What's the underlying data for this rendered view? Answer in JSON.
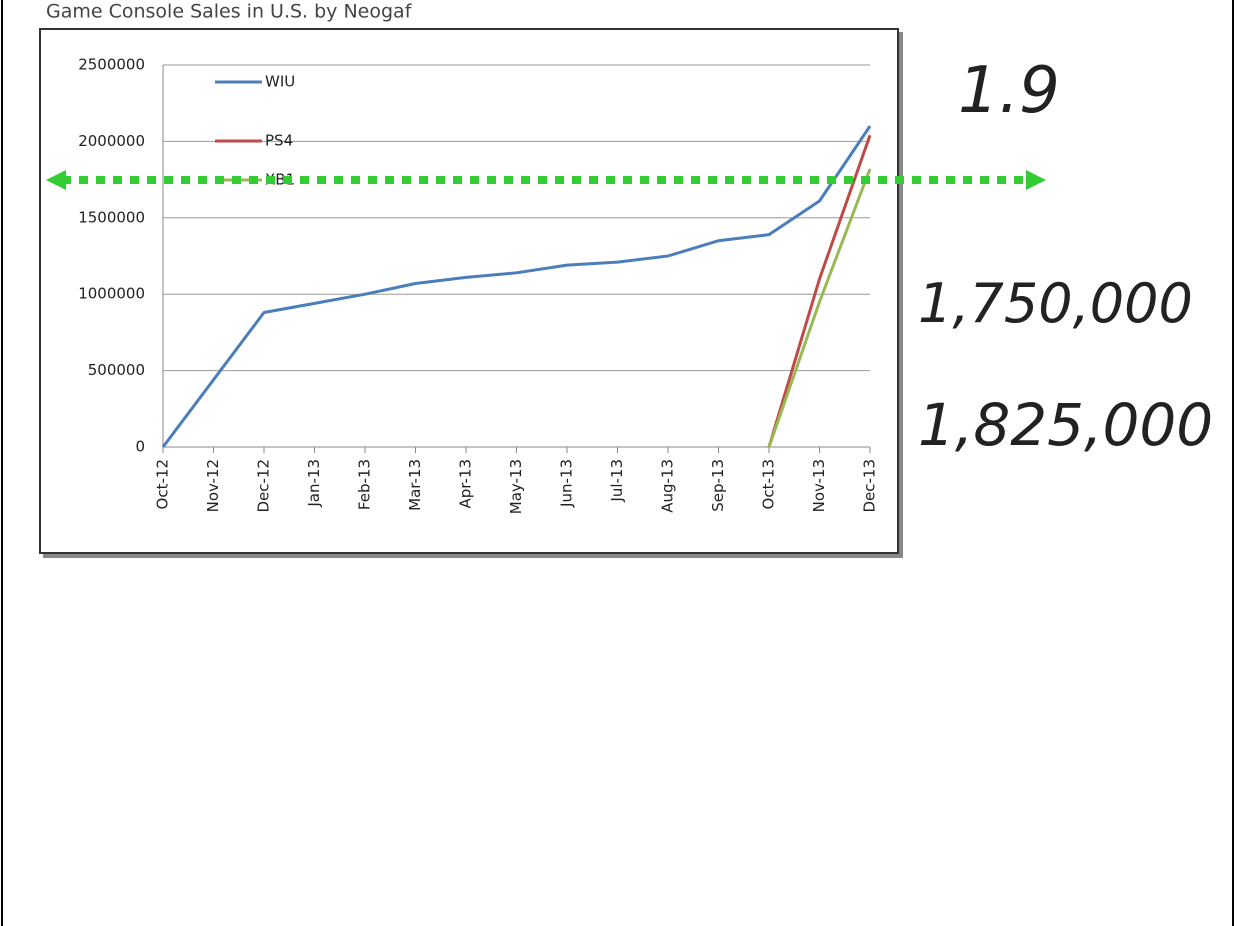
{
  "chart_data": {
    "type": "line",
    "title": "Game Console Sales in U.S. by Neogaf",
    "categories": [
      "Oct-12",
      "Nov-12",
      "Dec-12",
      "Jan-13",
      "Feb-13",
      "Mar-13",
      "Apr-13",
      "May-13",
      "Jun-13",
      "Jul-13",
      "Aug-13",
      "Sep-13",
      "Oct-13",
      "Nov-13",
      "Dec-13"
    ],
    "series": [
      {
        "name": "WIU",
        "color": "#4a7ebb",
        "values": [
          0,
          440000,
          880000,
          940000,
          1000000,
          1070000,
          1110000,
          1140000,
          1190000,
          1210000,
          1250000,
          1350000,
          1390000,
          1610000,
          2100000
        ]
      },
      {
        "name": "PS4",
        "color": "#be4b48",
        "values": [
          null,
          null,
          null,
          null,
          null,
          null,
          null,
          null,
          null,
          null,
          null,
          null,
          0,
          1100000,
          2040000
        ]
      },
      {
        "name": "XB1",
        "color": "#98b954",
        "values": [
          null,
          null,
          null,
          null,
          null,
          null,
          null,
          null,
          null,
          null,
          null,
          null,
          0,
          950000,
          1820000
        ]
      }
    ],
    "ylim": [
      0,
      2500000
    ],
    "yticks": [
      0,
      500000,
      1000000,
      1500000,
      2000000,
      2500000
    ],
    "grid": true,
    "legend": "upper left",
    "annotations": [
      {
        "text": "1.9",
        "color": "#1a1aff"
      },
      {
        "text": "1,750,000",
        "color": "#ff1a1a"
      },
      {
        "text": "1,825,000",
        "color": "#1a1aff"
      }
    ]
  }
}
